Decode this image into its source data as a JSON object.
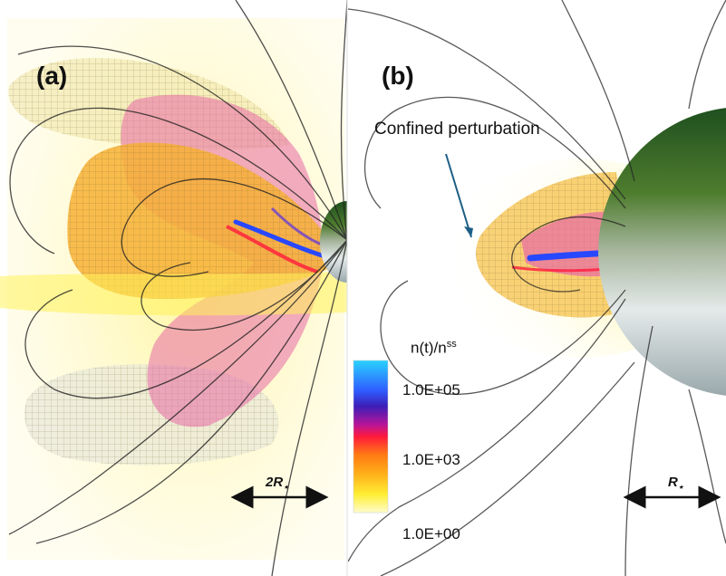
{
  "panels": [
    {
      "label": "(a)",
      "scale_bar": {
        "text": "2R",
        "sub": "⋆"
      }
    },
    {
      "label": "(b)",
      "scale_bar": {
        "text": "R",
        "sub": "⋆"
      }
    }
  ],
  "annotation": "Confined perturbation",
  "colorbar": {
    "title_main": "n(t)/n",
    "title_sup": "ss",
    "ticks": [
      "1.0E+05",
      "1.0E+03",
      "1.0E+00"
    ],
    "colors": [
      "#29d3ff",
      "#2f5bff",
      "#3b1fb8",
      "#b5149a",
      "#ff1a3c",
      "#ff7a12",
      "#ffb21a",
      "#ffee33",
      "#fffccc"
    ]
  },
  "colors": {
    "halo": "#fff7a8",
    "structure_orange": "#f7b035",
    "structure_magenta": "#e86aa6",
    "structure_blue": "#2848ff",
    "star_top": "#1f5a1f",
    "star_bottom": "#dfe5e6",
    "field_line": "#222222",
    "arrow": "#111111",
    "pointer": "#1d5f86"
  }
}
